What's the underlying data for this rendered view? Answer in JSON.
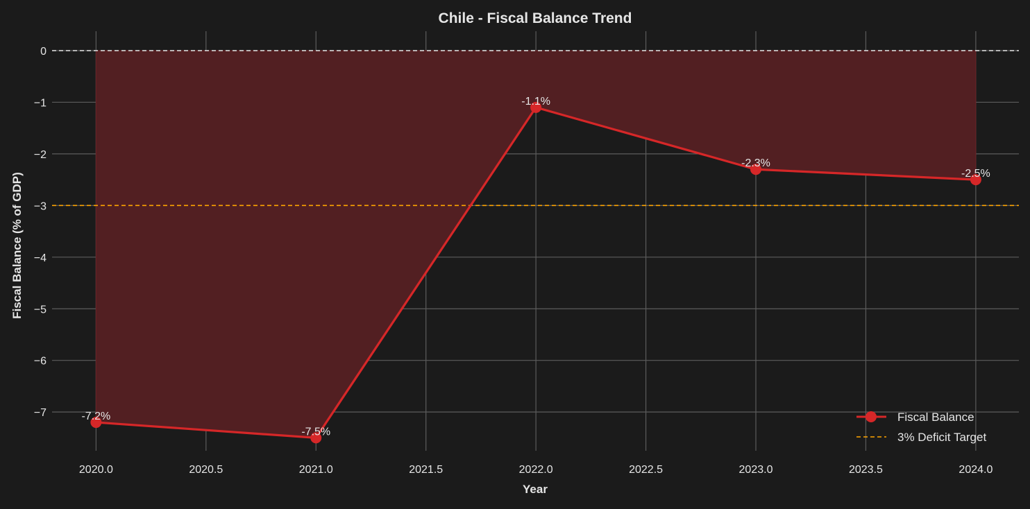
{
  "chart_data": {
    "type": "line",
    "title": "Chile - Fiscal Balance Trend",
    "xlabel": "Year",
    "ylabel": "Fiscal Balance (% of GDP)",
    "x": [
      2020,
      2021,
      2022,
      2023,
      2024
    ],
    "series": [
      {
        "name": "Fiscal Balance",
        "values": [
          -7.2,
          -7.5,
          -1.1,
          -2.3,
          -2.5
        ],
        "color": "#d62728",
        "marker": "circle",
        "fill_to_zero": true,
        "fill_color": "#521f22"
      }
    ],
    "data_labels": [
      "-7.2%",
      "-7.5%",
      "-1.1%",
      "-2.3%",
      "-2.5%"
    ],
    "reference_lines": [
      {
        "name": "zero-line",
        "y": 0,
        "color": "#e6e6e6",
        "style": "dashed"
      },
      {
        "name": "3% Deficit Target",
        "y": -3,
        "color": "#ffa500",
        "style": "dashed"
      }
    ],
    "xlim": [
      2019.8,
      2024.196
    ],
    "ylim": [
      -7.75,
      0.376
    ],
    "xticks": [
      2020.0,
      2020.5,
      2021.0,
      2021.5,
      2022.0,
      2022.5,
      2023.0,
      2023.5,
      2024.0
    ],
    "xtick_labels": [
      "2020.0",
      "2020.5",
      "2021.0",
      "2021.5",
      "2022.0",
      "2022.5",
      "2023.0",
      "2023.5",
      "2024.0"
    ],
    "yticks": [
      0,
      -1,
      -2,
      -3,
      -4,
      -5,
      -6,
      -7
    ],
    "ytick_labels": [
      "0",
      "−1",
      "−2",
      "−3",
      "−4",
      "−5",
      "−6",
      "−7"
    ],
    "grid": true,
    "legend": {
      "placement": "bottom-right",
      "entries": [
        "Fiscal Balance",
        "3% Deficit Target"
      ]
    }
  }
}
